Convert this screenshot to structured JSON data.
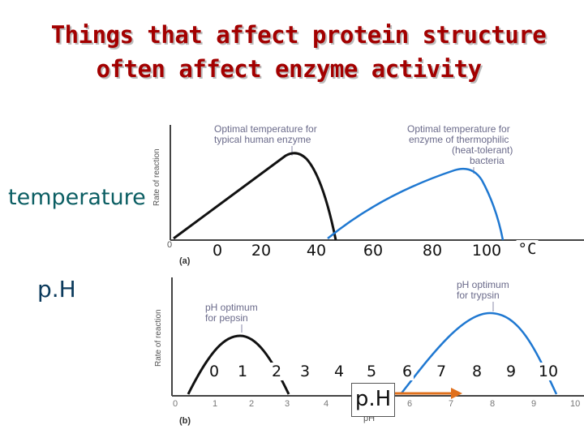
{
  "title": {
    "line1": "Things that affect protein structure",
    "line2": "often affect enzyme activity"
  },
  "labels": {
    "temperature": "temperature",
    "ph": "p.H",
    "ph_axis_box": "p.H"
  },
  "panel_a": {
    "label": "(a)",
    "y_axis": "Rate of reaction",
    "origin": "0",
    "annotation_human": [
      "Optimal temperature for",
      "typical human enzyme"
    ],
    "annotation_thermophile": [
      "Optimal temperature for",
      "enzyme of thermophilic",
      "(heat-tolerant)",
      "bacteria"
    ],
    "ticks": [
      "0",
      "20",
      "40",
      "60",
      "80",
      "100"
    ],
    "unit": "°C"
  },
  "panel_b": {
    "label": "(b)",
    "y_axis": "Rate of reaction",
    "x_axis": "pH",
    "annotation_pepsin": [
      "pH optimum",
      "for pepsin"
    ],
    "annotation_trypsin": [
      "pH optimum",
      "for trypsin"
    ],
    "axis_ticks": [
      "0",
      "1",
      "2",
      "3",
      "4",
      "5",
      "6",
      "7",
      "8",
      "9",
      "10"
    ],
    "ticks": [
      "0",
      "1",
      "2",
      "3",
      "4",
      "5",
      "6",
      "7",
      "8",
      "9",
      "10"
    ]
  },
  "colors": {
    "title": "#a30000",
    "temperature_label": "#0b5e63",
    "human_curve": "#111111",
    "bacteria_curve": "#1f78d1",
    "pepsin_curve": "#111111",
    "trypsin_curve": "#1f78d1",
    "arrow": "#e0701c",
    "annotation": "#6a6a8a"
  }
}
